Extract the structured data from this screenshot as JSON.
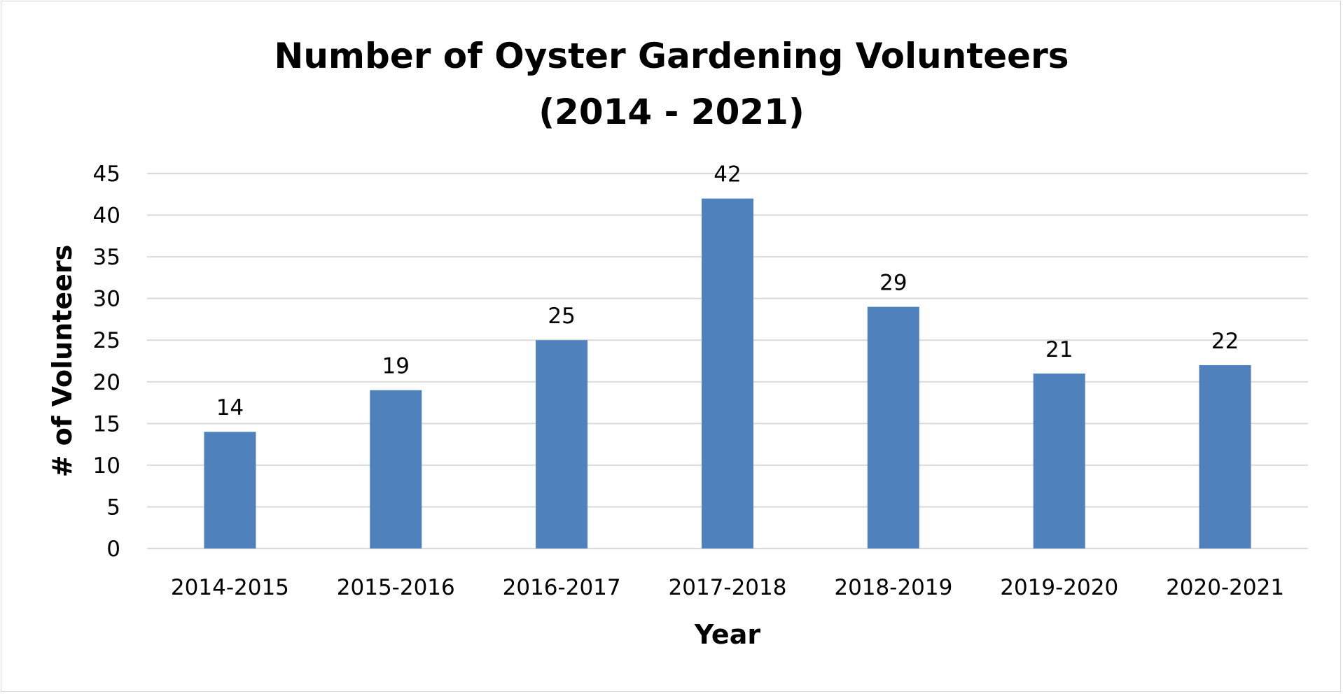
{
  "chart_data": {
    "type": "bar",
    "title_lines": [
      "Number of Oyster Gardening Volunteers",
      "(2014 - 2021)"
    ],
    "title": "Number of Oyster Gardening Volunteers (2014 - 2021)",
    "xlabel": "Year",
    "ylabel": "# of Volunteers",
    "categories": [
      "2014-2015",
      "2015-2016",
      "2016-2017",
      "2017-2018",
      "2018-2019",
      "2019-2020",
      "2020-2021"
    ],
    "values": [
      14,
      19,
      25,
      42,
      29,
      21,
      22
    ],
    "ylim": [
      0,
      45
    ],
    "yticks": [
      0,
      5,
      10,
      15,
      20,
      25,
      30,
      35,
      40,
      45
    ],
    "grid": true,
    "legend": "none",
    "bar_color": "#4f81bd",
    "gridline_color": "#d9d9d9"
  }
}
